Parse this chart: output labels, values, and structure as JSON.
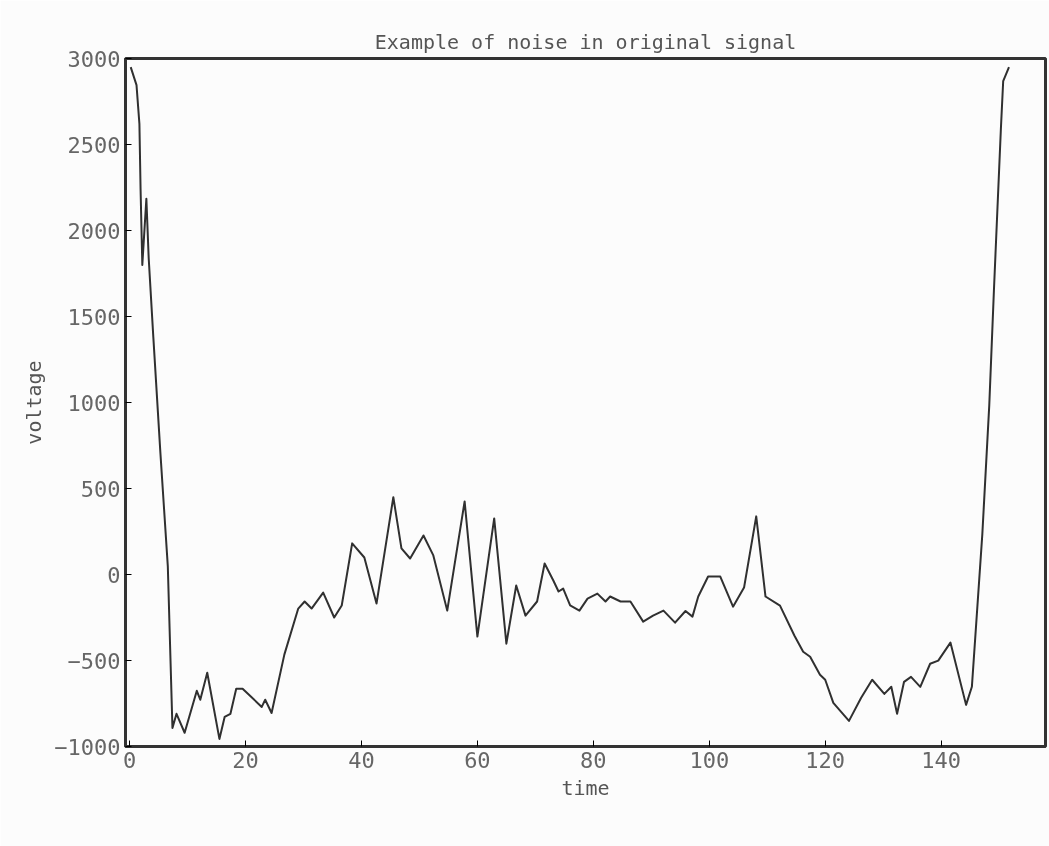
{
  "chart_data": {
    "type": "line",
    "title": "Example of noise in original signal",
    "xlabel": "time",
    "ylabel": "voltage",
    "xlim": [
      -0.7,
      158
    ],
    "ylim": [
      -1000,
      3000
    ],
    "xticks": [
      0,
      20,
      40,
      60,
      80,
      100,
      120,
      140
    ],
    "yticks": [
      -1000,
      -500,
      0,
      500,
      1000,
      1500,
      2000,
      2500,
      3000
    ],
    "grid": false,
    "marker": "none",
    "line_style": "solid",
    "series": [
      {
        "color": "#303030",
        "x": [
          0.2,
          1.2,
          1.7,
          1.9,
          2.2,
          2.9,
          3.3,
          4.1,
          5.3,
          6.6,
          7.4,
          8.1,
          9.5,
          11.6,
          12.2,
          13.4,
          15.5,
          16.4,
          17.4,
          18.4,
          19.5,
          22.8,
          23.4,
          24.5,
          26.7,
          29.1,
          30.2,
          31.4,
          33.4,
          35.3,
          36.6,
          38.4,
          40.5,
          42.6,
          45.5,
          46.9,
          48.4,
          50.7,
          52.4,
          54.8,
          57.8,
          60.0,
          62.9,
          65.0,
          66.7,
          68.3,
          70.3,
          71.6,
          73.1,
          74.0,
          74.8,
          76.0,
          77.6,
          79.0,
          80.7,
          82.1,
          82.9,
          84.7,
          86.4,
          88.6,
          90.3,
          92.1,
          94.1,
          95.9,
          97.1,
          98.1,
          99.8,
          101.9,
          104.1,
          106.0,
          108.1,
          109.7,
          112.2,
          114.7,
          116.2,
          117.4,
          119.1,
          120.0,
          121.4,
          124.1,
          126.2,
          128.1,
          130.2,
          131.4,
          132.4,
          133.6,
          134.8,
          136.4,
          138.1,
          139.5,
          141.6,
          144.3,
          145.3,
          147.1,
          148.3,
          149.1,
          150.3,
          150.7,
          151.7
        ],
        "values": [
          2950,
          2845,
          2620,
          2240,
          1800,
          2185,
          1840,
          1380,
          717,
          47,
          -892,
          -810,
          -920,
          -676,
          -728,
          -571,
          -956,
          -828,
          -810,
          -664,
          -664,
          -770,
          -728,
          -805,
          -466,
          -198,
          -157,
          -198,
          -105,
          -250,
          -180,
          181,
          99,
          -169,
          449,
          152,
          93,
          227,
          111,
          -210,
          425,
          -361,
          326,
          -402,
          -64,
          -239,
          -157,
          64,
          -35,
          -99,
          -82,
          -180,
          -210,
          -140,
          -111,
          -157,
          -128,
          -157,
          -157,
          -274,
          -239,
          -210,
          -280,
          -212,
          -245,
          -128,
          -12,
          -12,
          -187,
          -76,
          338,
          -128,
          -181,
          -356,
          -449,
          -478,
          -583,
          -612,
          -746,
          -851,
          -717,
          -612,
          -694,
          -653,
          -810,
          -624,
          -595,
          -653,
          -519,
          -501,
          -396,
          -758,
          -653,
          233,
          985,
          1650,
          2588,
          2868,
          2950
        ]
      }
    ]
  }
}
